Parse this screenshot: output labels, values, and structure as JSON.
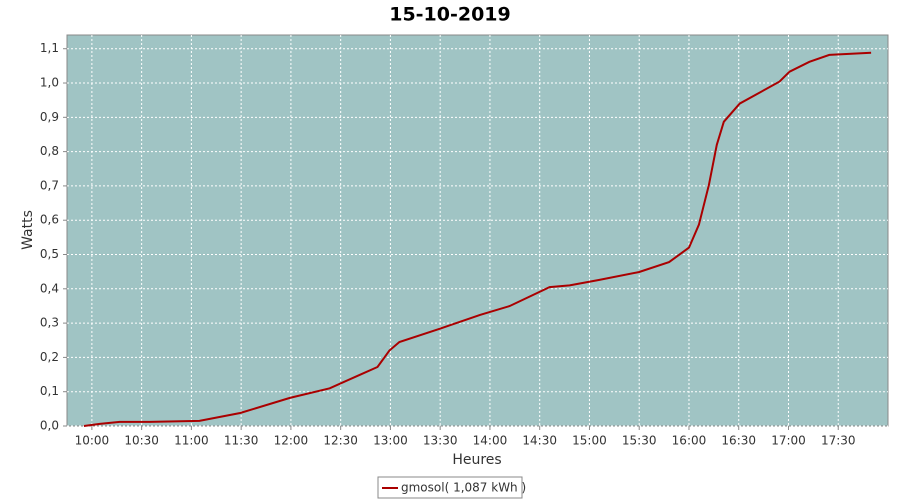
{
  "chart_data": {
    "type": "line",
    "title": "15-10-2019",
    "x_label": "Heures",
    "y_label": "Watts",
    "x": [
      9.92,
      10.08,
      10.28,
      10.58,
      11.08,
      11.49,
      11.99,
      12.39,
      12.69,
      12.87,
      12.99,
      13.09,
      13.49,
      13.9,
      14.2,
      14.6,
      14.8,
      15.1,
      15.5,
      15.8,
      16.0,
      16.1,
      16.2,
      16.28,
      16.35,
      16.51,
      16.91,
      17.01,
      17.21,
      17.41,
      17.83
    ],
    "series": [
      {
        "name": "gmosol( 1,087 kWh )",
        "color": "#aa0000",
        "values": [
          0,
          0.006,
          0.012,
          0.012,
          0.015,
          0.038,
          0.082,
          0.11,
          0.149,
          0.172,
          0.22,
          0.245,
          0.283,
          0.324,
          0.35,
          0.405,
          0.41,
          0.426,
          0.449,
          0.478,
          0.52,
          0.587,
          0.703,
          0.82,
          0.887,
          0.94,
          1.004,
          1.033,
          1.062,
          1.082,
          1.088
        ]
      }
    ],
    "xlim": [
      9.75,
      18.0
    ],
    "xticks": [
      {
        "value": 10,
        "label": "10:00"
      },
      {
        "value": 10.5,
        "label": "10:30"
      },
      {
        "value": 11,
        "label": "11:00"
      },
      {
        "value": 11.5,
        "label": "11:30"
      },
      {
        "value": 12,
        "label": "12:00"
      },
      {
        "value": 12.5,
        "label": "12:30"
      },
      {
        "value": 13,
        "label": "13:00"
      },
      {
        "value": 13.5,
        "label": "13:30"
      },
      {
        "value": 14,
        "label": "14:00"
      },
      {
        "value": 14.5,
        "label": "14:30"
      },
      {
        "value": 15,
        "label": "15:00"
      },
      {
        "value": 15.5,
        "label": "15:30"
      },
      {
        "value": 16,
        "label": "16:00"
      },
      {
        "value": 16.5,
        "label": "16:30"
      },
      {
        "value": 17,
        "label": "17:00"
      },
      {
        "value": 17.5,
        "label": "17:30"
      }
    ],
    "ylim": [
      0,
      1.14
    ],
    "yticks": [
      {
        "value": 0,
        "label": "0,0"
      },
      {
        "value": 0.1,
        "label": "0,1"
      },
      {
        "value": 0.2,
        "label": "0,2"
      },
      {
        "value": 0.3,
        "label": "0,3"
      },
      {
        "value": 0.4,
        "label": "0,4"
      },
      {
        "value": 0.5,
        "label": "0,5"
      },
      {
        "value": 0.6,
        "label": "0,6"
      },
      {
        "value": 0.7,
        "label": "0,7"
      },
      {
        "value": 0.8,
        "label": "0,8"
      },
      {
        "value": 0.9,
        "label": "0,9"
      },
      {
        "value": 1.0,
        "label": "1,0"
      },
      {
        "value": 1.1,
        "label": "1,1"
      }
    ],
    "grid": true,
    "background": "#a0c4c4"
  }
}
